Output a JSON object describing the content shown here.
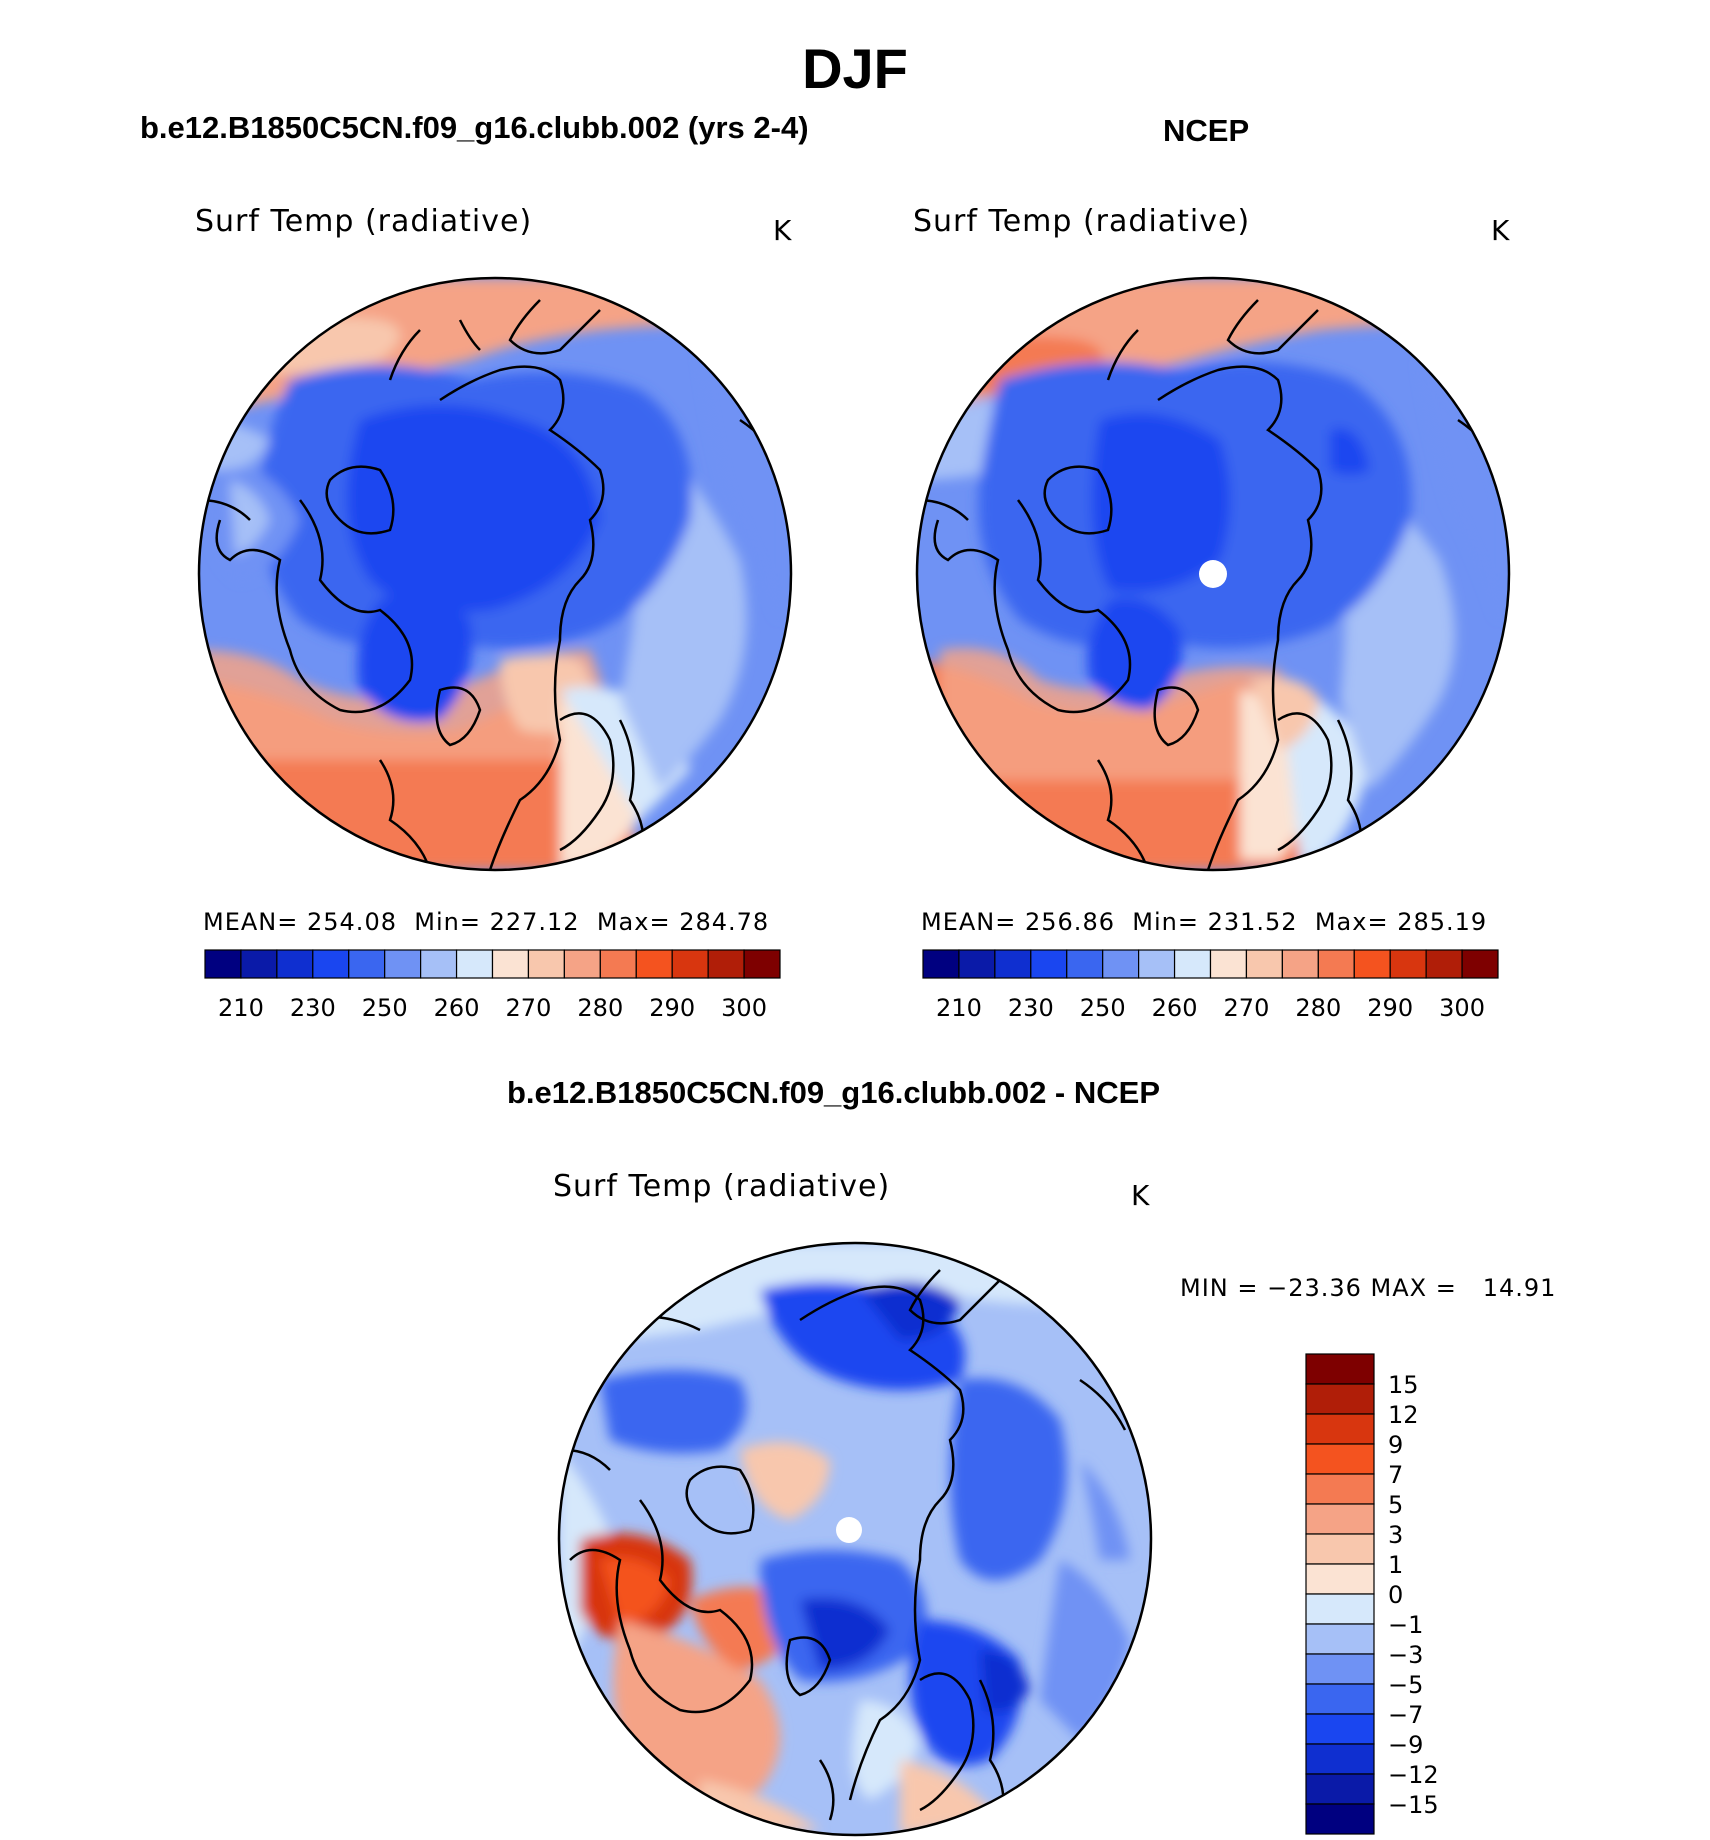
{
  "page_title": "DJF",
  "colors": {
    "positive_scale": [
      "#000080",
      "#0a1aa8",
      "#0f2fd0",
      "#1a46f0",
      "#3a66f0",
      "#6f92f4",
      "#a6c0f7",
      "#d6e8fb",
      "#fbe3d3",
      "#f8c7ad",
      "#f5a386",
      "#f47a52",
      "#f4531f",
      "#d8360f",
      "#b01e08",
      "#7e0000"
    ],
    "diff_scale": [
      "#7e0000",
      "#b01e08",
      "#d8360f",
      "#f4531f",
      "#f47a52",
      "#f5a386",
      "#f8c7ad",
      "#fbe3d3",
      "#d6e8fb",
      "#a6c0f7",
      "#6f92f4",
      "#3a66f0",
      "#1a46f0",
      "#0f2fd0",
      "#0a1aa8",
      "#000080"
    ],
    "land_outline": "#000000",
    "background": "#ffffff"
  },
  "chart_data": [
    {
      "type": "heatmap",
      "projection": "north polar stereographic",
      "title": "b.e12.B1850C5CN.f09_g16.clubb.002 (yrs 2-4)",
      "variable": "Surf Temp (radiative)",
      "units": "K",
      "stats": {
        "mean_label": "MEAN=",
        "mean": "254.08",
        "min_label": "Min=",
        "min": "227.12",
        "max_label": "Max=",
        "max": "284.78"
      },
      "colorbar_levels": [
        210,
        220,
        230,
        240,
        250,
        255,
        260,
        265,
        270,
        275,
        280,
        285,
        290,
        295,
        300
      ],
      "colorbar_tick_labels": [
        "210",
        "230",
        "250",
        "260",
        "270",
        "280",
        "290",
        "300"
      ],
      "missing_pole": false
    },
    {
      "type": "heatmap",
      "projection": "north polar stereographic",
      "title": "NCEP",
      "variable": "Surf Temp (radiative)",
      "units": "K",
      "stats": {
        "mean_label": "MEAN=",
        "mean": "256.86",
        "min_label": "Min=",
        "min": "231.52",
        "max_label": "Max=",
        "max": "285.19"
      },
      "colorbar_levels": [
        210,
        220,
        230,
        240,
        250,
        255,
        260,
        265,
        270,
        275,
        280,
        285,
        290,
        295,
        300
      ],
      "colorbar_tick_labels": [
        "210",
        "230",
        "250",
        "260",
        "270",
        "280",
        "290",
        "300"
      ],
      "missing_pole": true
    },
    {
      "type": "heatmap",
      "projection": "north polar stereographic",
      "title": "b.e12.B1850C5CN.f09_g16.clubb.002 - NCEP",
      "variable": "Surf Temp (radiative)",
      "units": "K",
      "stats_text": "MIN = −23.36 MAX =   14.91",
      "stats": {
        "min": -23.36,
        "max": 14.91
      },
      "colorbar_levels": [
        15,
        12,
        9,
        7,
        5,
        3,
        1,
        0,
        -1,
        -3,
        -5,
        -7,
        -9,
        -12,
        -15
      ],
      "colorbar_tick_labels": [
        "15",
        "12",
        "9",
        "7",
        "5",
        "3",
        "1",
        "0",
        "−1",
        "−3",
        "−5",
        "−7",
        "−9",
        "−12",
        "−15"
      ],
      "missing_pole": true
    }
  ]
}
